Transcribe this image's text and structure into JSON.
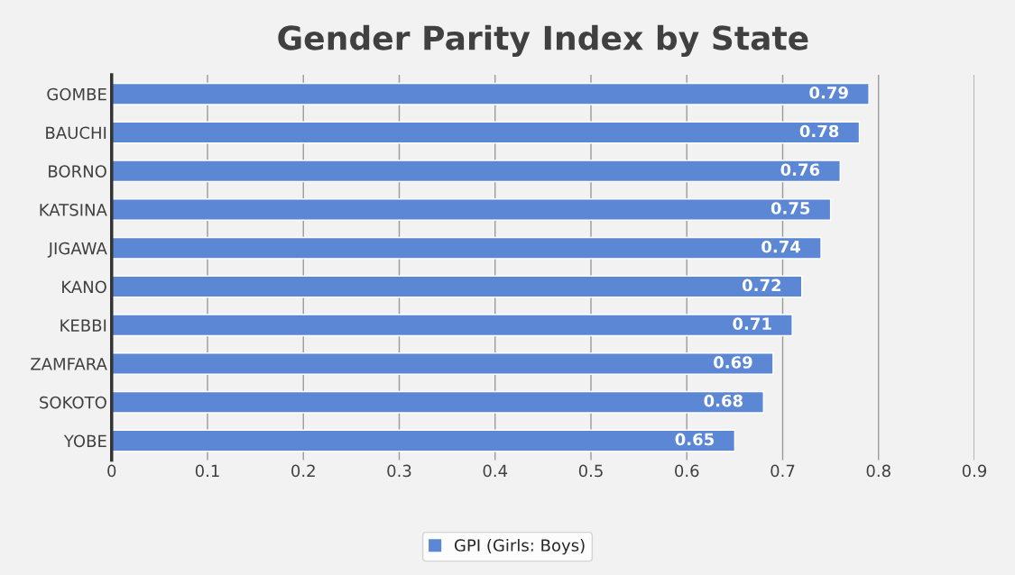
{
  "chart_data": {
    "type": "bar",
    "orientation": "horizontal",
    "title": "Gender Parity Index by State",
    "categories": [
      "GOMBE",
      "BAUCHI",
      "BORNO",
      "KATSINA",
      "JIGAWA",
      "KANO",
      "KEBBI",
      "ZAMFARA",
      "SOKOTO",
      "YOBE"
    ],
    "series": [
      {
        "name": "GPI (Girls: Boys)",
        "color": "#5b87d4",
        "values": [
          0.79,
          0.78,
          0.76,
          0.75,
          0.74,
          0.72,
          0.71,
          0.69,
          0.68,
          0.65
        ]
      }
    ],
    "xlim": [
      0,
      0.9
    ],
    "xticks": [
      0,
      0.1,
      0.2,
      0.3,
      0.4,
      0.5,
      0.6,
      0.7,
      0.8,
      0.9
    ],
    "grid": "x",
    "legend": "bottom",
    "data_labels": true
  }
}
